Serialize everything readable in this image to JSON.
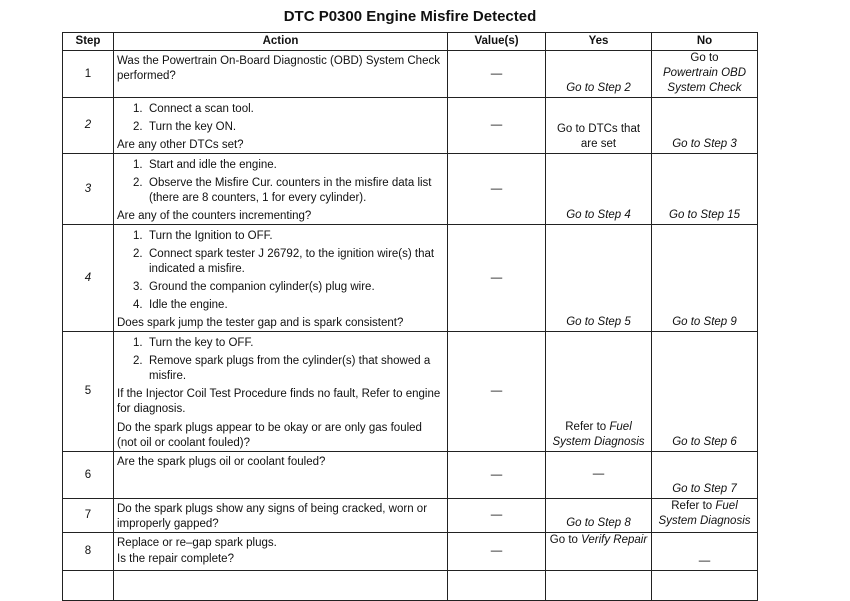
{
  "title": "DTC P0300 Engine Misfire Detected",
  "headers": [
    "Step",
    "Action",
    "Value(s)",
    "Yes",
    "No"
  ],
  "rows": [
    {
      "step": "1",
      "steps": [],
      "question": "Was the Powertrain On-Board Diagnostic (OBD) System Check performed?",
      "value": "—",
      "yes": {
        "text": "",
        "italic": "Go to Step 2"
      },
      "no": {
        "text": "Go to",
        "italic": "Powertrain OBD System Check"
      }
    },
    {
      "step": "2",
      "steps": [
        "Connect a scan tool.",
        "Turn the key ON."
      ],
      "question": "Are any other DTCs set?",
      "value": "—",
      "yes": {
        "text": "Go to DTCs that are set",
        "italic": ""
      },
      "no": {
        "text": "",
        "italic": "Go to Step 3"
      }
    },
    {
      "step": "3",
      "steps": [
        "Start and idle the engine.",
        "Observe the Misfire Cur. counters in the misfire data list (there are 8 counters, 1 for every cylinder)."
      ],
      "question": "Are any of the counters incrementing?",
      "value": "—",
      "yes": {
        "text": "",
        "italic": "Go to Step 4"
      },
      "no": {
        "text": "",
        "italic": "Go to Step 15"
      }
    },
    {
      "step": "4",
      "steps": [
        "Turn the Ignition to OFF.",
        "Connect spark tester J 26792, to the ignition wire(s) that indicated a misfire.",
        "Ground the companion cylinder(s) plug wire.",
        "Idle the engine."
      ],
      "question": "Does spark jump the tester gap and is spark consistent?",
      "value": "—",
      "yes": {
        "text": "",
        "italic": "Go to Step 5"
      },
      "no": {
        "text": "",
        "italic": "Go to Step 9"
      }
    },
    {
      "step": "5",
      "steps": [
        "Turn the key to OFF.",
        "Remove spark plugs from the cylinder(s) that showed a misfire."
      ],
      "note": "If the Injector Coil Test Procedure finds no fault, Refer to engine for diagnosis.",
      "question": "Do the spark plugs appear to be okay or are only gas fouled (not oil or coolant fouled)?",
      "value": "—",
      "yes": {
        "text": "Refer to",
        "italic": "Fuel System Diagnosis"
      },
      "no": {
        "text": "",
        "italic": "Go to Step 6"
      }
    },
    {
      "step": "6",
      "steps": [],
      "question": "Are the spark plugs oil or coolant fouled?",
      "value": "—",
      "yes": {
        "text": "—",
        "italic": ""
      },
      "no": {
        "text": "",
        "italic": "Go to Step 7"
      }
    },
    {
      "step": "7",
      "steps": [],
      "question": "Do the spark plugs show any signs of being cracked, worn or improperly gapped?",
      "value": "—",
      "yes": {
        "text": "",
        "italic": "Go to Step 8"
      },
      "no": {
        "text": "Refer to",
        "italic": "Fuel System Diagnosis"
      }
    },
    {
      "step": "8",
      "steps": [],
      "pre": "Replace or re–gap spark plugs.",
      "question": "Is the repair complete?",
      "value": "—",
      "yes": {
        "text": "Go to",
        "italic": "Verify Repair"
      },
      "no": {
        "text": "—",
        "italic": ""
      }
    }
  ]
}
